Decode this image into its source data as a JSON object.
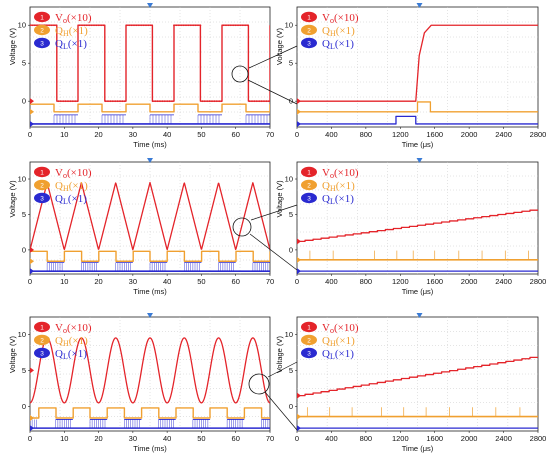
{
  "chart_data": [
    {
      "id": "a-left",
      "type": "line",
      "xlabel": "Time (ms)",
      "ylabel": "Voltage (V)",
      "xlim": [
        0,
        70
      ],
      "xticks": [
        0,
        10,
        20,
        30,
        40,
        50,
        60,
        70
      ],
      "ylim": [
        -3.4,
        12.4
      ],
      "yticks": [
        0,
        5,
        10
      ],
      "grid": true,
      "legend": "top-left",
      "legend_entries": [
        {
          "badge": "1",
          "text": "V",
          "sub": "o",
          "tail": "(×10)",
          "color": "#e4242a"
        },
        {
          "badge": "2",
          "text": "Q",
          "sub": "H",
          "tail": "(×1)",
          "color": "#f0a030"
        },
        {
          "badge": "3",
          "text": "Q",
          "sub": "L",
          "tail": "(×1)",
          "color": "#2a2ad0"
        }
      ],
      "series": [
        {
          "name": "Vo(×10)",
          "color": "#e4242a",
          "mode": "square",
          "low": 0,
          "high": 10,
          "period": 14,
          "duty": 0.55,
          "phase": 0
        },
        {
          "name": "QH(×1)",
          "color": "#f0a030",
          "mode": "square",
          "low": -1.4,
          "high": -0.4,
          "period": 14,
          "duty": 0.5,
          "phase": 0
        },
        {
          "name": "QL(×1)",
          "color": "#2a2ad0",
          "mode": "pwm",
          "low": -3.0,
          "high": -1.8,
          "period": 14,
          "duty": 0.5,
          "phase": 7
        }
      ]
    },
    {
      "id": "a-right",
      "type": "line",
      "xlabel": "Time (μs)",
      "ylabel": "Voltage (V)",
      "xlim": [
        0,
        2800
      ],
      "xticks": [
        0,
        400,
        800,
        1200,
        1600,
        2000,
        2400,
        2800
      ],
      "ylim": [
        -3.4,
        12.4
      ],
      "yticks": [
        0,
        5,
        10
      ],
      "grid": true,
      "legend": "top-left",
      "legend_entries": [
        {
          "badge": "1",
          "text": "V",
          "sub": "o",
          "tail": "(×10)",
          "color": "#e4242a"
        },
        {
          "badge": "2",
          "text": "Q",
          "sub": "H",
          "tail": "(×1)",
          "color": "#f0a030"
        },
        {
          "badge": "3",
          "text": "Q",
          "sub": "L",
          "tail": "(×1)",
          "color": "#2a2ad0"
        }
      ],
      "series": [
        {
          "name": "Vo(×10)",
          "color": "#e4242a",
          "mode": "points",
          "x": [
            0,
            1380,
            1420,
            1480,
            1560,
            1640,
            2800
          ],
          "y": [
            0,
            0,
            6,
            9,
            10,
            10,
            10
          ]
        },
        {
          "name": "QH(×1)",
          "color": "#f0a030",
          "mode": "points",
          "x": [
            0,
            1400,
            1400,
            1550,
            1550,
            2800
          ],
          "y": [
            -1.4,
            -1.4,
            -0.1,
            -0.1,
            -1.4,
            -1.4
          ]
        },
        {
          "name": "QL(×1)",
          "color": "#2a2ad0",
          "mode": "points",
          "x": [
            0,
            1150,
            1150,
            1380,
            1380,
            2800
          ],
          "y": [
            -3.0,
            -3.0,
            -2.0,
            -2.0,
            -3.0,
            -3.0
          ]
        }
      ]
    },
    {
      "id": "b-left",
      "type": "line",
      "xlabel": "Time (ms)",
      "ylabel": "Voltage (V)",
      "xlim": [
        0,
        70
      ],
      "xticks": [
        0,
        10,
        20,
        30,
        40,
        50,
        60,
        70
      ],
      "ylim": [
        -3.4,
        12.4
      ],
      "yticks": [
        0,
        5,
        10
      ],
      "grid": true,
      "legend": "top-left",
      "legend_entries": [
        {
          "badge": "1",
          "text": "V",
          "sub": "o",
          "tail": "(×10)",
          "color": "#e4242a"
        },
        {
          "badge": "2",
          "text": "Q",
          "sub": "H",
          "tail": "(×1)",
          "color": "#f0a030"
        },
        {
          "badge": "3",
          "text": "Q",
          "sub": "L",
          "tail": "(×1)",
          "color": "#2a2ad0"
        }
      ],
      "series": [
        {
          "name": "Vo(×10)",
          "color": "#e4242a",
          "mode": "triangle",
          "low": 0,
          "high": 9.5,
          "period": 10,
          "phase": 0
        },
        {
          "name": "QH(×1)",
          "color": "#f0a030",
          "mode": "square",
          "low": -1.6,
          "high": -0.2,
          "period": 10,
          "duty": 0.5,
          "phase": 0
        },
        {
          "name": "QL(×1)",
          "color": "#2a2ad0",
          "mode": "pwm",
          "low": -3.0,
          "high": -1.8,
          "period": 10,
          "duty": 0.5,
          "phase": 5
        }
      ]
    },
    {
      "id": "b-right",
      "type": "line",
      "xlabel": "Time (μs)",
      "ylabel": "Voltage (V)",
      "xlim": [
        0,
        2800
      ],
      "xticks": [
        0,
        400,
        800,
        1200,
        1600,
        2000,
        2400,
        2800
      ],
      "ylim": [
        -3.4,
        12.4
      ],
      "yticks": [
        0,
        5,
        10
      ],
      "grid": true,
      "legend": "top-left",
      "legend_entries": [
        {
          "badge": "1",
          "text": "V",
          "sub": "o",
          "tail": "(×10)",
          "color": "#e4242a"
        },
        {
          "badge": "2",
          "text": "Q",
          "sub": "H",
          "tail": "(×1)",
          "color": "#f0a030"
        },
        {
          "badge": "3",
          "text": "Q",
          "sub": "L",
          "tail": "(×1)",
          "color": "#2a2ad0"
        }
      ],
      "series": [
        {
          "name": "Vo(×10)",
          "color": "#e4242a",
          "mode": "staircase",
          "x0": 0,
          "x1": 2800,
          "y0": 1.2,
          "y1": 5.6,
          "steps": 30
        },
        {
          "name": "QH(×1)",
          "color": "#f0a030",
          "mode": "spikes",
          "base": -1.4,
          "top": -0.1,
          "x": [
            150,
            420,
            900,
            1160,
            1350,
            1600,
            1880,
            2150,
            2420,
            2690
          ]
        },
        {
          "name": "QL(×1)",
          "color": "#2a2ad0",
          "mode": "points",
          "x": [
            0,
            2800
          ],
          "y": [
            -3.0,
            -3.0
          ]
        }
      ]
    },
    {
      "id": "c-left",
      "type": "line",
      "xlabel": "Time (ms)",
      "ylabel": "Voltage (V)",
      "xlim": [
        0,
        70
      ],
      "xticks": [
        0,
        10,
        20,
        30,
        40,
        50,
        60,
        70
      ],
      "ylim": [
        -3.4,
        12.4
      ],
      "yticks": [
        0,
        5,
        10
      ],
      "grid": true,
      "legend": "top-left",
      "legend_entries": [
        {
          "badge": "1",
          "text": "V",
          "sub": "o",
          "tail": "(×10)",
          "color": "#e4242a"
        },
        {
          "badge": "2",
          "text": "Q",
          "sub": "H",
          "tail": "(×1)",
          "color": "#f0a030"
        },
        {
          "badge": "3",
          "text": "Q",
          "sub": "L",
          "tail": "(×1)",
          "color": "#2a2ad0"
        }
      ],
      "series": [
        {
          "name": "Vo(×10)",
          "color": "#e4242a",
          "mode": "sine",
          "mid": 5,
          "amp": 4.5,
          "period": 10,
          "phase": 0
        },
        {
          "name": "QH(×1)",
          "color": "#f0a030",
          "mode": "square",
          "low": -1.6,
          "high": -0.2,
          "period": 10,
          "duty": 0.5,
          "phase": 2.5
        },
        {
          "name": "QL(×1)",
          "color": "#2a2ad0",
          "mode": "pwm",
          "low": -3.0,
          "high": -1.8,
          "period": 10,
          "duty": 0.5,
          "phase": 7.5
        }
      ]
    },
    {
      "id": "c-right",
      "type": "line",
      "xlabel": "Time (μs)",
      "ylabel": "Voltage (V)",
      "xlim": [
        0,
        2800
      ],
      "xticks": [
        0,
        400,
        800,
        1200,
        1600,
        2000,
        2400,
        2800
      ],
      "ylim": [
        -3.4,
        12.4
      ],
      "yticks": [
        0,
        5,
        10
      ],
      "grid": true,
      "legend": "top-left",
      "legend_entries": [
        {
          "badge": "1",
          "text": "V",
          "sub": "o",
          "tail": "(×10)",
          "color": "#e4242a"
        },
        {
          "badge": "2",
          "text": "Q",
          "sub": "H",
          "tail": "(×1)",
          "color": "#f0a030"
        },
        {
          "badge": "3",
          "text": "Q",
          "sub": "L",
          "tail": "(×1)",
          "color": "#2a2ad0"
        }
      ],
      "series": [
        {
          "name": "Vo(×10)",
          "color": "#e4242a",
          "mode": "staircase",
          "x0": 0,
          "x1": 2800,
          "y0": 1.5,
          "y1": 6.8,
          "steps": 30
        },
        {
          "name": "QH(×1)",
          "color": "#f0a030",
          "mode": "spikes",
          "base": -1.4,
          "top": -0.1,
          "x": [
            120,
            380,
            640,
            980,
            1240,
            1500,
            1770,
            2040,
            2310,
            2590
          ]
        },
        {
          "name": "QL(×1)",
          "color": "#2a2ad0",
          "mode": "points",
          "x": [
            0,
            2800
          ],
          "y": [
            -3.0,
            -3.0
          ]
        }
      ]
    }
  ]
}
